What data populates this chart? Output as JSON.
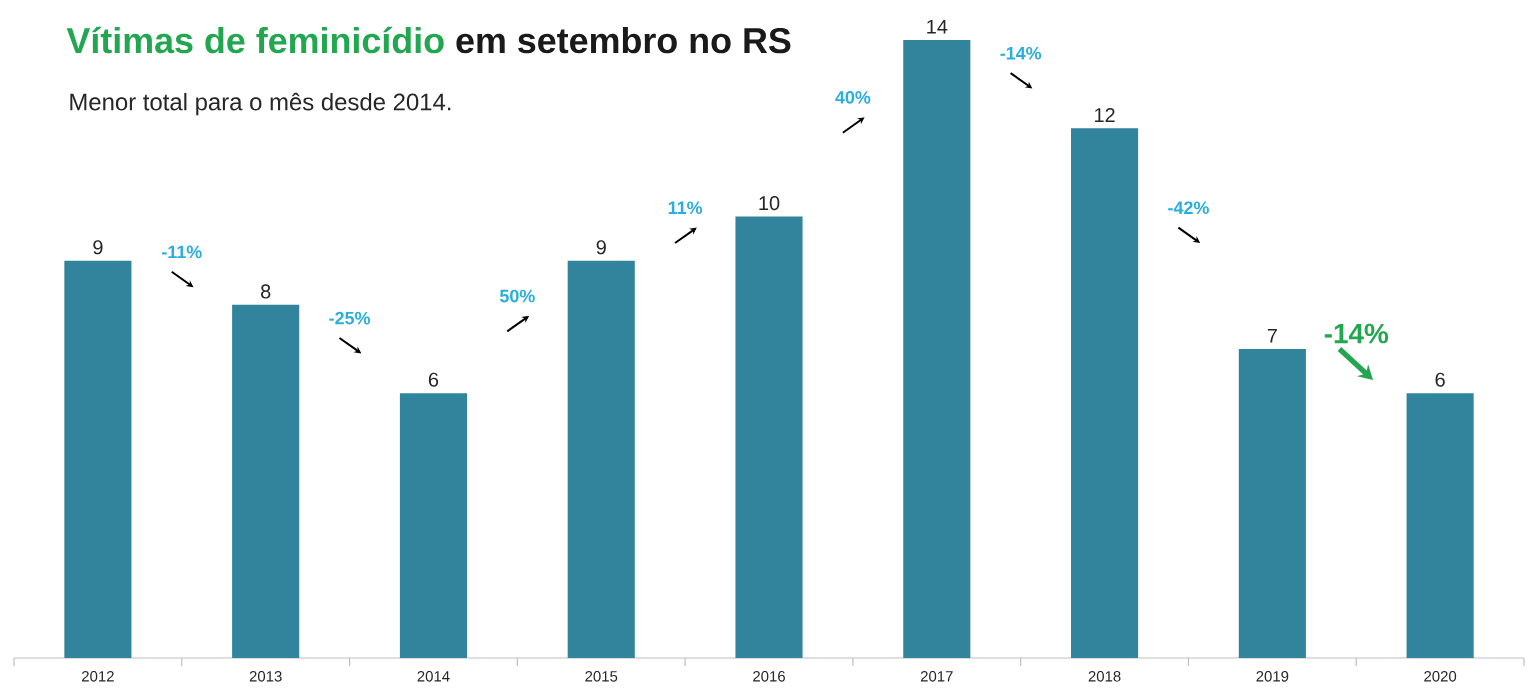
{
  "chart_data": {
    "type": "bar",
    "title": "**Vítimas de feminicídio** em setembro no RS",
    "subtitle": "Menor total para o mês desde 2014.",
    "categories": [
      "2012",
      "2013",
      "2014",
      "2015",
      "2016",
      "2017",
      "2018",
      "2019",
      "2020"
    ],
    "values": [
      9,
      8,
      6,
      9,
      10,
      14,
      12,
      7,
      6
    ],
    "color": "#31849b",
    "data_labels": true,
    "annotations": [
      "-11%",
      "-25%",
      "50%",
      "11%",
      "40%",
      "-14%",
      "-42%",
      "-14%"
    ]
  }
}
